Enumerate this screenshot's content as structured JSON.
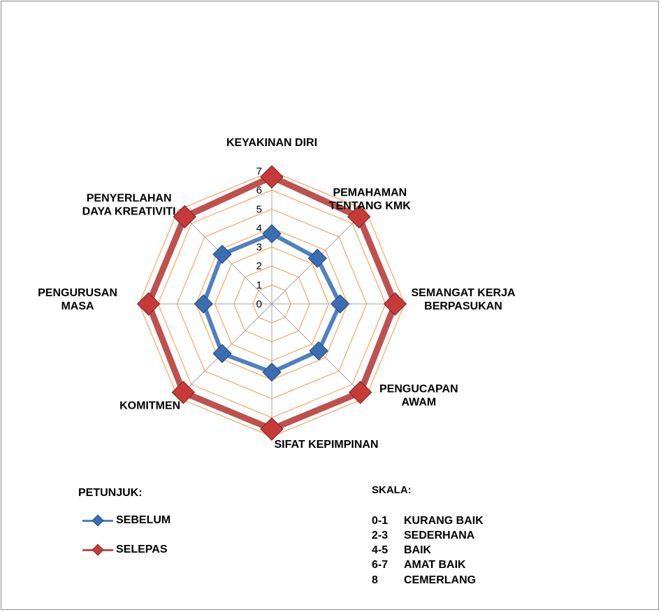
{
  "chart_data": {
    "type": "radar",
    "categories": [
      [
        "KEYAKINAN DIRI"
      ],
      [
        "PEMAHAMAN",
        "TENTANG KMK"
      ],
      [
        "SEMANGAT KERJA",
        "BERPASUKAN"
      ],
      [
        "PENGUCAPAN",
        "AWAM"
      ],
      [
        "SIFAT KEPIMPINAN"
      ],
      [
        "KOMITMEN"
      ],
      [
        "PENGURUSAN",
        "MASA"
      ],
      [
        "PENYERLAHAN",
        "DAYA KREATIVITI"
      ]
    ],
    "rlim": [
      0,
      7
    ],
    "ticks": [
      "0",
      "1",
      "2",
      "3",
      "4",
      "5",
      "6",
      "7"
    ],
    "series": [
      {
        "name": "SEBELUM",
        "color": "#4f81bd",
        "marker_color": "#3b6db3",
        "values": [
          3.7,
          3.4,
          3.6,
          3.5,
          3.6,
          3.7,
          3.6,
          3.7
        ]
      },
      {
        "name": "SELEPAS",
        "color": "#c0504d",
        "marker_color": "#c73a3a",
        "values": [
          6.7,
          6.5,
          6.5,
          6.6,
          6.6,
          6.6,
          6.5,
          6.5
        ]
      }
    ],
    "gridline_color": "#f79646",
    "spoke_color": "#a6a6a6"
  },
  "legend": {
    "title": "PETUNJUK:",
    "items": [
      "SEBELUM",
      "SELEPAS"
    ]
  },
  "scale": {
    "title": "SKALA:",
    "rows": [
      {
        "range": "0-1",
        "label": "KURANG BAIK"
      },
      {
        "range": "2-3",
        "label": "SEDERHANA"
      },
      {
        "range": "4-5",
        "label": "BAIK"
      },
      {
        "range": "6-7",
        "label": "AMAT BAIK"
      },
      {
        "range": "8",
        "label": "CEMERLANG"
      }
    ]
  }
}
